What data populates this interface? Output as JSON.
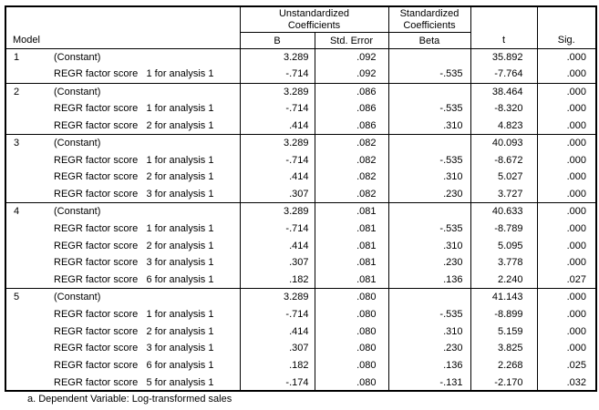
{
  "table": {
    "header": {
      "model": "Model",
      "unstandardized": "Unstandardized Coefficients",
      "standardized": "Standardized Coefficients",
      "b": "B",
      "std_error": "Std. Error",
      "beta": "Beta",
      "t": "t",
      "sig": "Sig."
    },
    "models": [
      {
        "number": "1",
        "rows": [
          {
            "label": "(Constant)",
            "b": "3.289",
            "se": ".092",
            "beta": "",
            "t": "35.892",
            "sig": ".000"
          },
          {
            "label": "REGR factor score   1 for analysis 1",
            "b": "-.714",
            "se": ".092",
            "beta": "-.535",
            "t": "-7.764",
            "sig": ".000"
          }
        ]
      },
      {
        "number": "2",
        "rows": [
          {
            "label": "(Constant)",
            "b": "3.289",
            "se": ".086",
            "beta": "",
            "t": "38.464",
            "sig": ".000"
          },
          {
            "label": "REGR factor score   1 for analysis 1",
            "b": "-.714",
            "se": ".086",
            "beta": "-.535",
            "t": "-8.320",
            "sig": ".000"
          },
          {
            "label": "REGR factor score   2 for analysis 1",
            "b": ".414",
            "se": ".086",
            "beta": ".310",
            "t": "4.823",
            "sig": ".000"
          }
        ]
      },
      {
        "number": "3",
        "rows": [
          {
            "label": "(Constant)",
            "b": "3.289",
            "se": ".082",
            "beta": "",
            "t": "40.093",
            "sig": ".000"
          },
          {
            "label": "REGR factor score   1 for analysis 1",
            "b": "-.714",
            "se": ".082",
            "beta": "-.535",
            "t": "-8.672",
            "sig": ".000"
          },
          {
            "label": "REGR factor score   2 for analysis 1",
            "b": ".414",
            "se": ".082",
            "beta": ".310",
            "t": "5.027",
            "sig": ".000"
          },
          {
            "label": "REGR factor score   3 for analysis 1",
            "b": ".307",
            "se": ".082",
            "beta": ".230",
            "t": "3.727",
            "sig": ".000"
          }
        ]
      },
      {
        "number": "4",
        "rows": [
          {
            "label": "(Constant)",
            "b": "3.289",
            "se": ".081",
            "beta": "",
            "t": "40.633",
            "sig": ".000"
          },
          {
            "label": "REGR factor score   1 for analysis 1",
            "b": "-.714",
            "se": ".081",
            "beta": "-.535",
            "t": "-8.789",
            "sig": ".000"
          },
          {
            "label": "REGR factor score   2 for analysis 1",
            "b": ".414",
            "se": ".081",
            "beta": ".310",
            "t": "5.095",
            "sig": ".000"
          },
          {
            "label": "REGR factor score   3 for analysis 1",
            "b": ".307",
            "se": ".081",
            "beta": ".230",
            "t": "3.778",
            "sig": ".000"
          },
          {
            "label": "REGR factor score   6 for analysis 1",
            "b": ".182",
            "se": ".081",
            "beta": ".136",
            "t": "2.240",
            "sig": ".027"
          }
        ]
      },
      {
        "number": "5",
        "rows": [
          {
            "label": "(Constant)",
            "b": "3.289",
            "se": ".080",
            "beta": "",
            "t": "41.143",
            "sig": ".000"
          },
          {
            "label": "REGR factor score   1 for analysis 1",
            "b": "-.714",
            "se": ".080",
            "beta": "-.535",
            "t": "-8.899",
            "sig": ".000"
          },
          {
            "label": "REGR factor score   2 for analysis 1",
            "b": ".414",
            "se": ".080",
            "beta": ".310",
            "t": "5.159",
            "sig": ".000"
          },
          {
            "label": "REGR factor score   3 for analysis 1",
            "b": ".307",
            "se": ".080",
            "beta": ".230",
            "t": "3.825",
            "sig": ".000"
          },
          {
            "label": "REGR factor score   6 for analysis 1",
            "b": ".182",
            "se": ".080",
            "beta": ".136",
            "t": "2.268",
            "sig": ".025"
          },
          {
            "label": "REGR factor score   5 for analysis 1",
            "b": "-.174",
            "se": ".080",
            "beta": "-.131",
            "t": "-2.170",
            "sig": ".032"
          }
        ]
      }
    ],
    "footnote": "a. Dependent Variable: Log-transformed sales"
  }
}
